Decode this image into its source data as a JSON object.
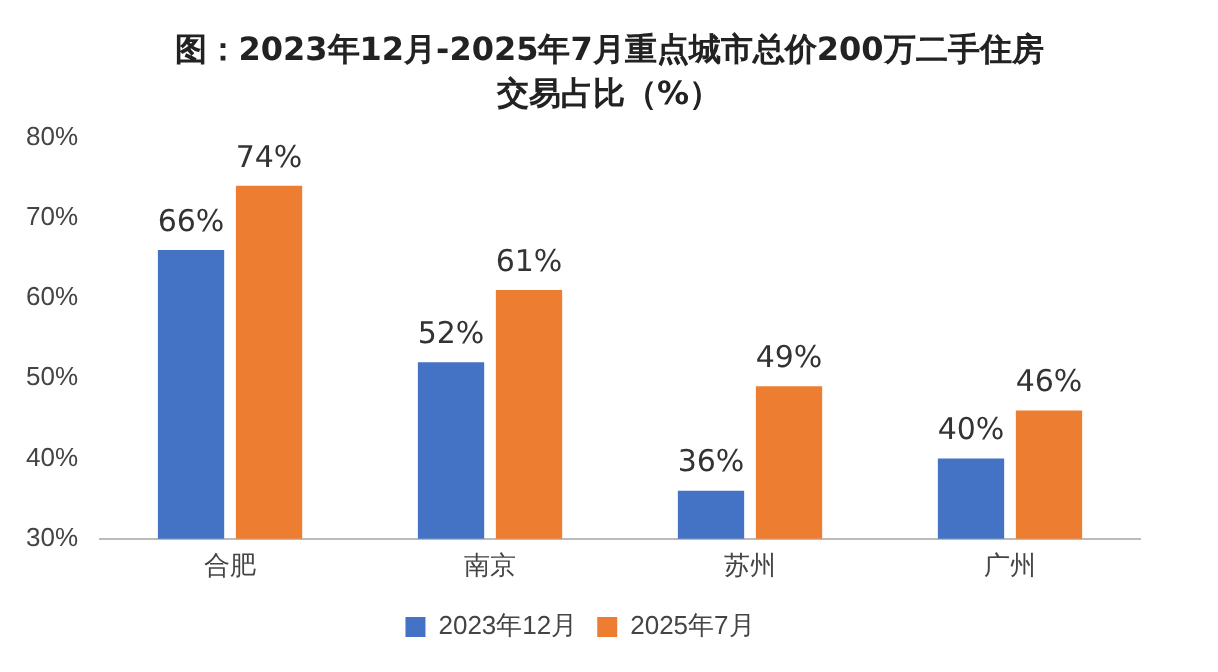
{
  "chart_data": {
    "type": "bar",
    "title": "图：2023年12月-2025年7月重点城市总价200万二手住房交易占比（%）",
    "categories": [
      "合肥",
      "南京",
      "苏州",
      "广州"
    ],
    "series": [
      {
        "name": "2023年12月",
        "color": "#4472c4",
        "values": [
          66,
          52,
          36,
          40
        ],
        "value_labels": [
          "66%",
          "52%",
          "36%",
          "40%"
        ]
      },
      {
        "name": "2025年7月",
        "color": "#ed7d31",
        "values": [
          74,
          61,
          49,
          46
        ],
        "value_labels": [
          "74%",
          "61%",
          "49%",
          "46%"
        ]
      }
    ],
    "ylim": [
      30,
      80
    ],
    "yticks": [
      {
        "value": 30,
        "label": "30%"
      },
      {
        "value": 40,
        "label": "40%"
      },
      {
        "value": 50,
        "label": "50%"
      },
      {
        "value": 60,
        "label": "60%"
      },
      {
        "value": 70,
        "label": "70%"
      },
      {
        "value": 80,
        "label": "80%"
      }
    ],
    "grid": false,
    "legend": "bottom"
  }
}
